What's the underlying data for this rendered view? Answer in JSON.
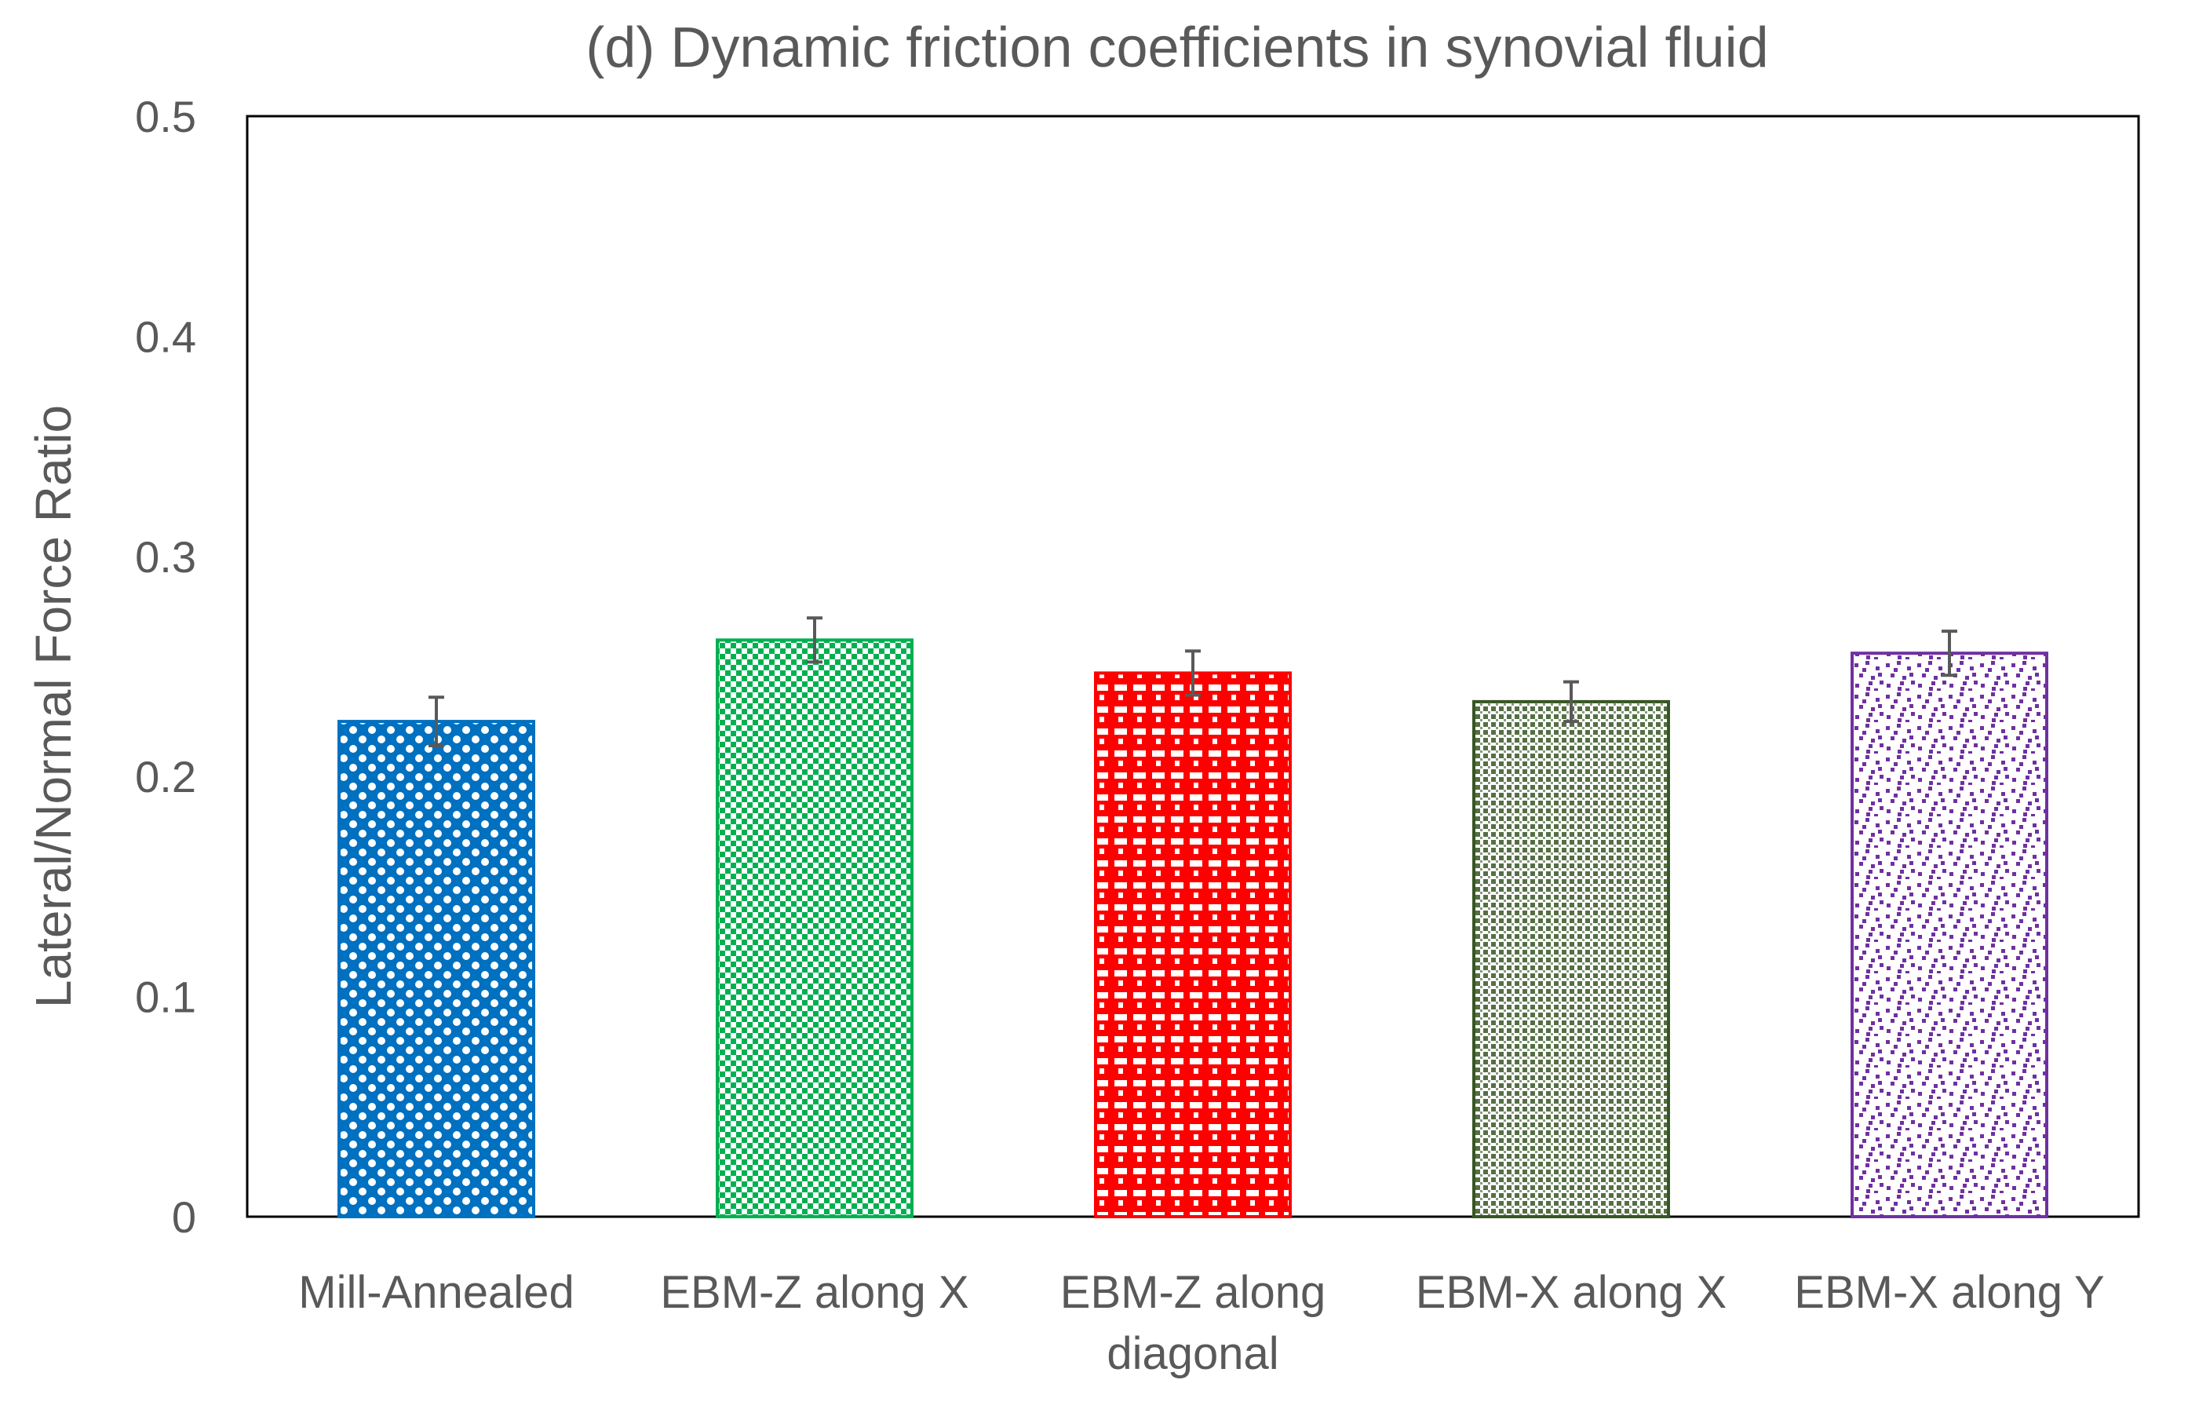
{
  "chart_data": {
    "type": "bar",
    "title": "(d) Dynamic friction coefficients in synovial fluid",
    "xlabel": "",
    "ylabel": "Lateral/Normal Force Ratio",
    "ylim": [
      0,
      0.5
    ],
    "yticks": [
      "0",
      "0.1",
      "0.2",
      "0.3",
      "0.4",
      "0.5"
    ],
    "ytick_values": [
      0,
      0.1,
      0.2,
      0.3,
      0.4,
      0.5
    ],
    "grid": false,
    "legend": "none",
    "categories": [
      [
        "Mill-Annealed"
      ],
      [
        "EBM-Z along X"
      ],
      [
        "EBM-Z along",
        "diagonal"
      ],
      [
        "EBM-X along X"
      ],
      [
        "EBM-X along Y"
      ]
    ],
    "values": [
      0.225,
      0.262,
      0.247,
      0.234,
      0.256
    ],
    "errors": [
      0.011,
      0.01,
      0.01,
      0.009,
      0.01
    ],
    "colors": [
      "#0070C0",
      "#00B050",
      "#FF0000",
      "#375623",
      "#7030A0"
    ],
    "patterns": [
      "large-dots",
      "checker",
      "plaid",
      "small-grid",
      "confetti"
    ]
  }
}
